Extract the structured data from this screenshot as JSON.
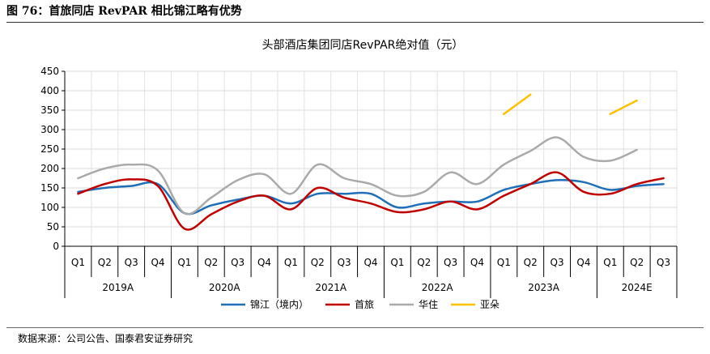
{
  "figure_title": "图 76：首旅同店 RevPAR 相比锦江略有优势",
  "source_note": "数据来源：公司公告、国泰君安证券研究",
  "chart_data": {
    "type": "line",
    "title": "头部酒店集团同店RevPAR绝对值（元）",
    "xlabel": "",
    "ylabel": "",
    "ylim": [
      0,
      450
    ],
    "yticks": [
      0,
      50,
      100,
      150,
      200,
      250,
      300,
      350,
      400,
      450
    ],
    "grid": true,
    "legend_position": "bottom",
    "categories": [
      "Q1",
      "Q2",
      "Q3",
      "Q4",
      "Q1",
      "Q2",
      "Q3",
      "Q4",
      "Q1",
      "Q2",
      "Q3",
      "Q4",
      "Q1",
      "Q2",
      "Q3",
      "Q4",
      "Q1",
      "Q2",
      "Q3",
      "Q4",
      "Q1",
      "Q2",
      "Q3"
    ],
    "groups": [
      {
        "label": "2019A",
        "count": 4
      },
      {
        "label": "2020A",
        "count": 4
      },
      {
        "label": "2021A",
        "count": 4
      },
      {
        "label": "2022A",
        "count": 4
      },
      {
        "label": "2023A",
        "count": 4
      },
      {
        "label": "2024E",
        "count": 3
      }
    ],
    "series": [
      {
        "name": "锦江（境内）",
        "color": "#1f6fb8",
        "values": [
          140,
          150,
          155,
          160,
          85,
          105,
          120,
          130,
          110,
          135,
          135,
          135,
          100,
          110,
          115,
          115,
          145,
          160,
          170,
          165,
          145,
          155,
          160
        ]
      },
      {
        "name": "首旅",
        "color": "#c00000",
        "values": [
          135,
          160,
          172,
          155,
          45,
          82,
          115,
          130,
          95,
          150,
          125,
          110,
          88,
          95,
          115,
          95,
          130,
          160,
          190,
          140,
          135,
          160,
          175
        ]
      },
      {
        "name": "华住",
        "color": "#aaaaaa",
        "values": [
          175,
          200,
          210,
          195,
          85,
          125,
          170,
          185,
          135,
          210,
          175,
          160,
          130,
          140,
          190,
          160,
          210,
          245,
          280,
          230,
          220,
          248,
          null
        ]
      },
      {
        "name": "亚朵",
        "color": "#ffc000",
        "values": [
          null,
          null,
          null,
          null,
          null,
          null,
          null,
          null,
          null,
          null,
          null,
          null,
          null,
          null,
          null,
          null,
          340,
          390,
          null,
          null,
          340,
          375,
          null
        ]
      }
    ]
  }
}
